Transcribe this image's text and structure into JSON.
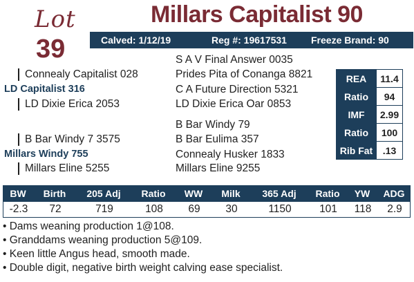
{
  "lot": {
    "word": "Lot",
    "number": "39"
  },
  "title": "Millars Capitalist 90",
  "info": {
    "calved": "Calved: 1/12/19",
    "reg": "Reg #: 19617531",
    "freeze": "Freeze Brand: 90"
  },
  "pedigree": {
    "sss": "S A V Final Answer 0035",
    "ss": "Connealy Capitalist 028",
    "ssd": "Prides Pita of Conanga 8821",
    "sire": "LD Capitalist 316",
    "sds": "C A Future Direction 5321",
    "sd": "LD Dixie Erica 2053",
    "sdd": "LD Dixie Erica Oar 0853",
    "dss": "B Bar Windy 79",
    "ds": "B Bar Windy 7 3575",
    "dsd": "B Bar Eulima 357",
    "dam": "Millars Windy 755",
    "dds": "Connealy Husker 1833",
    "dd": "Millars Eline 5255",
    "ddd": "Millars Eline 9255"
  },
  "carcass": [
    {
      "label": "REA",
      "value": "11.4"
    },
    {
      "label": "Ratio",
      "value": "94"
    },
    {
      "label": "IMF",
      "value": "2.99"
    },
    {
      "label": "Ratio",
      "value": "100"
    },
    {
      "label": "Rib Fat",
      "value": ".13"
    }
  ],
  "performance": {
    "headers": [
      "BW",
      "Birth",
      "205 Adj",
      "Ratio",
      "WW",
      "Milk",
      "365 Adj",
      "Ratio",
      "YW",
      "ADG"
    ],
    "values": [
      "-2.3",
      "72",
      "719",
      "108",
      "69",
      "30",
      "1150",
      "101",
      "118",
      "2.9"
    ]
  },
  "notes": [
    "• Dams weaning production 1@108.",
    "• Granddams weaning production 5@109.",
    "• Keen little Angus head, smooth made.",
    "• Double digit, negative birth weight calving ease specialist."
  ],
  "colors": {
    "maroon": "#7a2b34",
    "navy": "#1d3e5a"
  }
}
